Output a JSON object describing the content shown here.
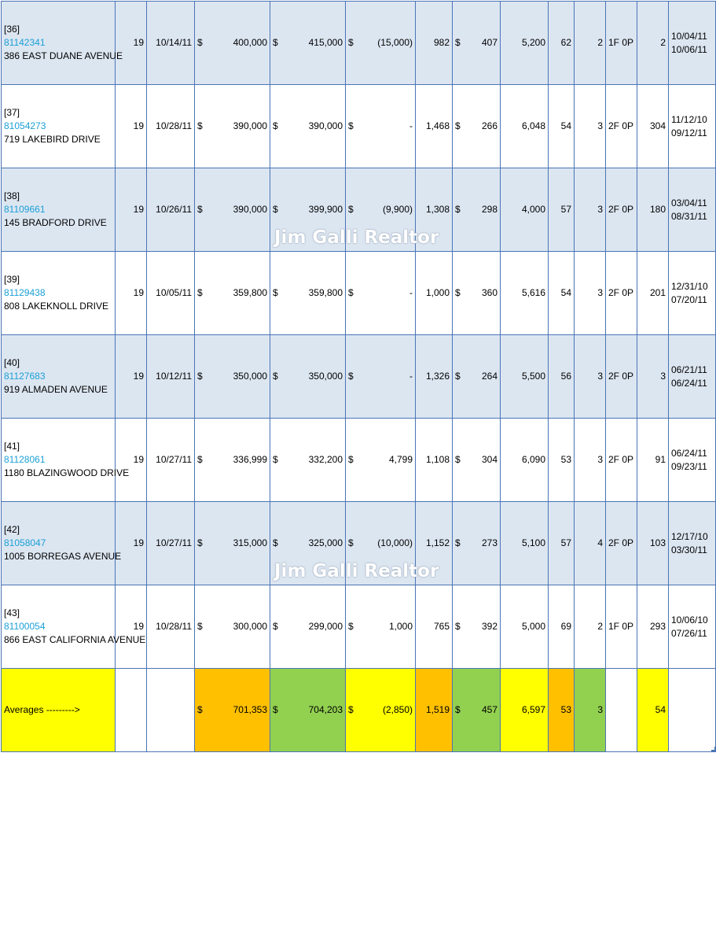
{
  "watermark": "Jim Galli Realtor",
  "rows": [
    {
      "index": "[36]",
      "mls": "81142341",
      "address": "386 EAST DUANE AVENUE",
      "area": "19",
      "sold_date": "10/14/11",
      "list_cur": "$",
      "list_price": "400,000",
      "sale_cur": "$",
      "sale_price": "415,000",
      "diff_cur": "$",
      "diff": "(15,000)",
      "sqft": "982",
      "ppsf_cur": "$",
      "ppsf": "407",
      "lot": "5,200",
      "age": "62",
      "beds": "2",
      "baths": "1F 0P",
      "dom": "2",
      "date1": "10/04/11",
      "date2": "10/06/11"
    },
    {
      "index": "[37]",
      "mls": "81054273",
      "address": "719 LAKEBIRD DRIVE",
      "area": "19",
      "sold_date": "10/28/11",
      "list_cur": "$",
      "list_price": "390,000",
      "sale_cur": "$",
      "sale_price": "390,000",
      "diff_cur": "$",
      "diff": "-",
      "sqft": "1,468",
      "ppsf_cur": "$",
      "ppsf": "266",
      "lot": "6,048",
      "age": "54",
      "beds": "3",
      "baths": "2F 0P",
      "dom": "304",
      "date1": "11/12/10",
      "date2": "09/12/11"
    },
    {
      "index": "[38]",
      "mls": "81109661",
      "address": "145 BRADFORD DRIVE",
      "area": "19",
      "sold_date": "10/26/11",
      "list_cur": "$",
      "list_price": "390,000",
      "sale_cur": "$",
      "sale_price": "399,900",
      "diff_cur": "$",
      "diff": "(9,900)",
      "sqft": "1,308",
      "ppsf_cur": "$",
      "ppsf": "298",
      "lot": "4,000",
      "age": "57",
      "beds": "3",
      "baths": "2F 0P",
      "dom": "180",
      "date1": "03/04/11",
      "date2": "08/31/11"
    },
    {
      "index": "[39]",
      "mls": "81129438",
      "address": "808 LAKEKNOLL DRIVE",
      "area": "19",
      "sold_date": "10/05/11",
      "list_cur": "$",
      "list_price": "359,800",
      "sale_cur": "$",
      "sale_price": "359,800",
      "diff_cur": "$",
      "diff": "-",
      "sqft": "1,000",
      "ppsf_cur": "$",
      "ppsf": "360",
      "lot": "5,616",
      "age": "54",
      "beds": "3",
      "baths": "2F 0P",
      "dom": "201",
      "date1": "12/31/10",
      "date2": "07/20/11"
    },
    {
      "index": "[40]",
      "mls": "81127683",
      "address": "919 ALMADEN AVENUE",
      "area": "19",
      "sold_date": "10/12/11",
      "list_cur": "$",
      "list_price": "350,000",
      "sale_cur": "$",
      "sale_price": "350,000",
      "diff_cur": "$",
      "diff": "-",
      "sqft": "1,326",
      "ppsf_cur": "$",
      "ppsf": "264",
      "lot": "5,500",
      "age": "56",
      "beds": "3",
      "baths": "2F 0P",
      "dom": "3",
      "date1": "06/21/11",
      "date2": "06/24/11"
    },
    {
      "index": "[41]",
      "mls": "81128061",
      "address": "1180 BLAZINGWOOD DRIVE",
      "area": "19",
      "sold_date": "10/27/11",
      "list_cur": "$",
      "list_price": "336,999",
      "sale_cur": "$",
      "sale_price": "332,200",
      "diff_cur": "$",
      "diff": "4,799",
      "sqft": "1,108",
      "ppsf_cur": "$",
      "ppsf": "304",
      "lot": "6,090",
      "age": "53",
      "beds": "3",
      "baths": "2F 0P",
      "dom": "91",
      "date1": "06/24/11",
      "date2": "09/23/11"
    },
    {
      "index": "[42]",
      "mls": "81058047",
      "address": "1005 BORREGAS AVENUE",
      "area": "19",
      "sold_date": "10/27/11",
      "list_cur": "$",
      "list_price": "315,000",
      "sale_cur": "$",
      "sale_price": "325,000",
      "diff_cur": "$",
      "diff": "(10,000)",
      "sqft": "1,152",
      "ppsf_cur": "$",
      "ppsf": "273",
      "lot": "5,100",
      "age": "57",
      "beds": "4",
      "baths": "2F 0P",
      "dom": "103",
      "date1": "12/17/10",
      "date2": "03/30/11"
    },
    {
      "index": "[43]",
      "mls": "81100054",
      "address": "866 EAST CALIFORNIA AVENUE",
      "area": "19",
      "sold_date": "10/28/11",
      "list_cur": "$",
      "list_price": "300,000",
      "sale_cur": "$",
      "sale_price": "299,000",
      "diff_cur": "$",
      "diff": "1,000",
      "sqft": "765",
      "ppsf_cur": "$",
      "ppsf": "392",
      "lot": "5,000",
      "age": "69",
      "beds": "2",
      "baths": "1F 0P",
      "dom": "293",
      "date1": "10/06/10",
      "date2": "07/26/11"
    }
  ],
  "averages": {
    "label": "Averages --------->",
    "list_cur": "$",
    "list_price": "701,353",
    "sale_cur": "$",
    "sale_price": "704,203",
    "diff_cur": "$",
    "diff": "(2,850)",
    "sqft": "1,519",
    "ppsf_cur": "$",
    "ppsf": "457",
    "lot": "6,597",
    "age": "53",
    "beds": "3",
    "dom": "54",
    "colors": {
      "yellow": "#ffff00",
      "orange": "#ffc000",
      "green": "#92d050"
    }
  }
}
